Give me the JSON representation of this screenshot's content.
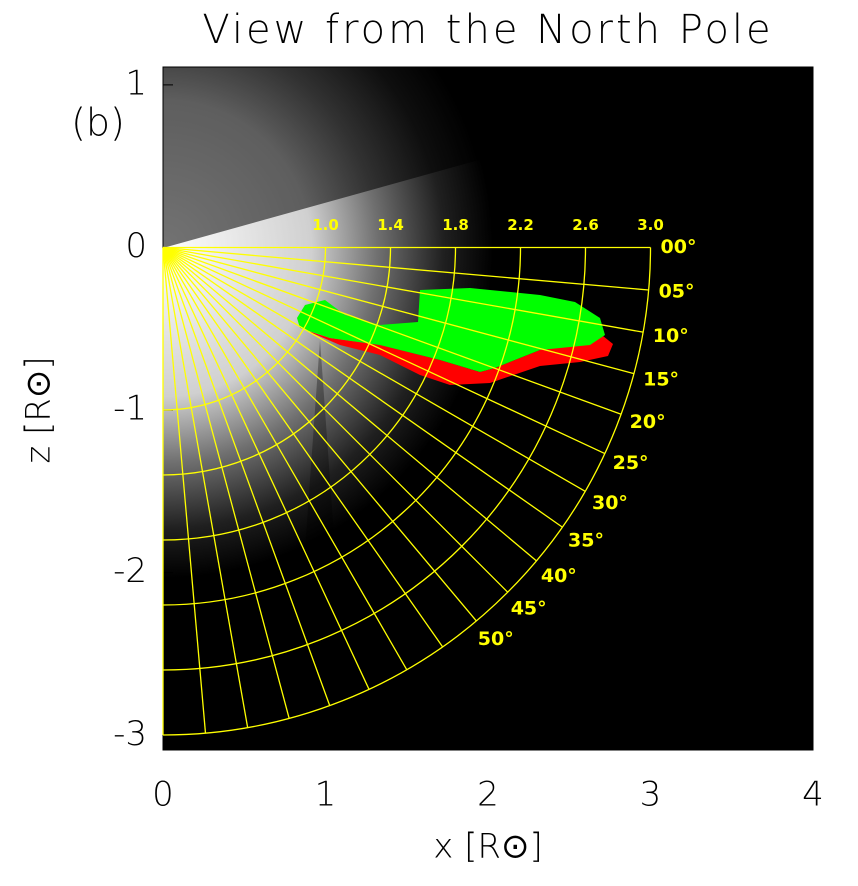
{
  "chart_data": {
    "type": "polar-overlay",
    "title": "View from the North Pole",
    "panel_label": "(b)",
    "x_label": "x [R⊙]",
    "y_label": "z [R⊙]",
    "xlim": [
      0,
      4
    ],
    "ylim": [
      -3.09,
      1.11
    ],
    "xticks": [
      0,
      1,
      2,
      3,
      4
    ],
    "yticks": [
      1,
      0,
      -1,
      -2,
      -3
    ],
    "radius_ticks": [
      {
        "value": 1.0,
        "label": "1.0"
      },
      {
        "value": 1.4,
        "label": "1.4"
      },
      {
        "value": 1.8,
        "label": "1.8"
      },
      {
        "value": 2.2,
        "label": "2.2"
      },
      {
        "value": 2.6,
        "label": "2.6"
      },
      {
        "value": 3.0,
        "label": "3.0"
      }
    ],
    "angle_ticks": [
      {
        "value": 0,
        "label": "00°"
      },
      {
        "value": 5,
        "label": "05°"
      },
      {
        "value": 10,
        "label": "10°"
      },
      {
        "value": 15,
        "label": "15°"
      },
      {
        "value": 20,
        "label": "20°"
      },
      {
        "value": 25,
        "label": "25°"
      },
      {
        "value": 30,
        "label": "30°"
      },
      {
        "value": 35,
        "label": "35°"
      },
      {
        "value": 40,
        "label": "40°"
      },
      {
        "value": 45,
        "label": "45°"
      },
      {
        "value": 50,
        "label": "50°"
      }
    ],
    "extra_rays": [
      55,
      60,
      65,
      70,
      75,
      80,
      85,
      90
    ],
    "grid_color": "#ffff00"
  }
}
